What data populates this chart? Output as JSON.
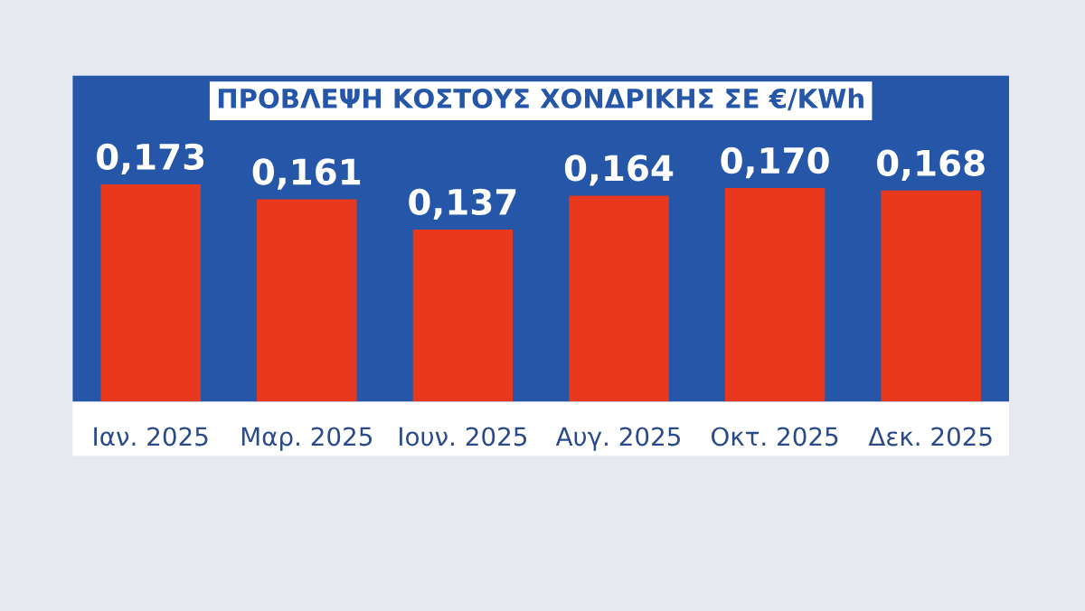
{
  "chart_data": {
    "type": "bar",
    "title": "ΠΡΟΒΛΕΨΗ ΚΟΣΤΟΥΣ ΧΟΝΔΡΙΚΗΣ ΣΕ €/KWh",
    "categories": [
      "Ιαν. 2025",
      "Μαρ. 2025",
      "Ιουν. 2025",
      "Αυγ. 2025",
      "Οκτ. 2025",
      "Δεκ. 2025"
    ],
    "values": [
      0.173,
      0.161,
      0.137,
      0.164,
      0.17,
      0.168
    ],
    "value_labels": [
      "0,173",
      "0,161",
      "0,137",
      "0,164",
      "0,170",
      "0,168"
    ],
    "color": "#e8391f",
    "grid": false,
    "legend": false,
    "tick_labels": "x"
  }
}
